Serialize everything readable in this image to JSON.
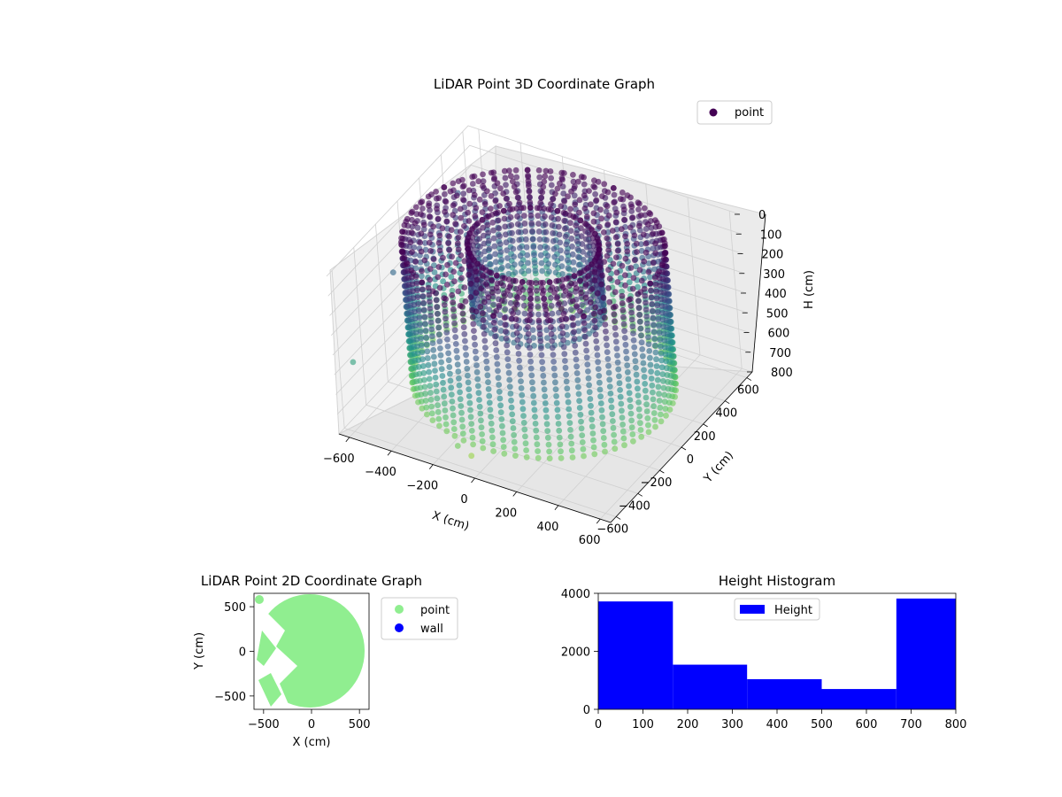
{
  "chart_data": [
    {
      "type": "scatter3d",
      "title": "LiDAR Point 3D Coordinate Graph",
      "xlabel": "X (cm)",
      "ylabel": "Y (cm)",
      "zlabel": "H (cm)",
      "x_ticks": [
        "−600",
        "−400",
        "−200",
        "0",
        "200",
        "400",
        "600"
      ],
      "y_ticks": [
        "−600",
        "−400",
        "−200",
        "0",
        "200",
        "400",
        "600"
      ],
      "z_ticks": [
        "0",
        "100",
        "200",
        "300",
        "400",
        "500",
        "600",
        "700",
        "800"
      ],
      "xlim": [
        -650,
        650
      ],
      "ylim": [
        -650,
        650
      ],
      "zlim": [
        0,
        800
      ],
      "legend": [
        {
          "name": "point",
          "color": "#440154"
        }
      ],
      "legend_position": "top-right",
      "colormap": "viridis",
      "grid": true,
      "shape": {
        "outer_radius": 560,
        "inner_radius": 280,
        "height_range": [
          0,
          800
        ]
      }
    },
    {
      "type": "scatter",
      "title": "LiDAR Point 2D Coordinate Graph",
      "xlabel": "X (cm)",
      "ylabel": "Y (cm)",
      "x_ticks": [
        "−500",
        "0",
        "500"
      ],
      "y_ticks": [
        "500",
        "0",
        "−500"
      ],
      "xlim": [
        -600,
        600
      ],
      "ylim": [
        -650,
        650
      ],
      "series": [
        {
          "name": "point",
          "color": "#90ee90"
        },
        {
          "name": "wall",
          "color": "#0000ff"
        }
      ],
      "legend_position": "outside-right"
    },
    {
      "type": "bar",
      "title": "Height Histogram",
      "xlabel": "",
      "ylabel": "",
      "bins": [
        [
          0,
          167
        ],
        [
          167,
          333
        ],
        [
          333,
          500
        ],
        [
          500,
          667
        ],
        [
          667,
          800
        ]
      ],
      "values": [
        3720,
        1540,
        1040,
        700,
        3820
      ],
      "x_ticks": [
        "0",
        "100",
        "200",
        "300",
        "400",
        "500",
        "600",
        "700",
        "800"
      ],
      "y_ticks": [
        "0",
        "2000",
        "4000"
      ],
      "xlim": [
        0,
        800
      ],
      "ylim": [
        0,
        4000
      ],
      "series": [
        {
          "name": "Height",
          "color": "#0000ff"
        }
      ],
      "legend_position": "top-center"
    }
  ]
}
